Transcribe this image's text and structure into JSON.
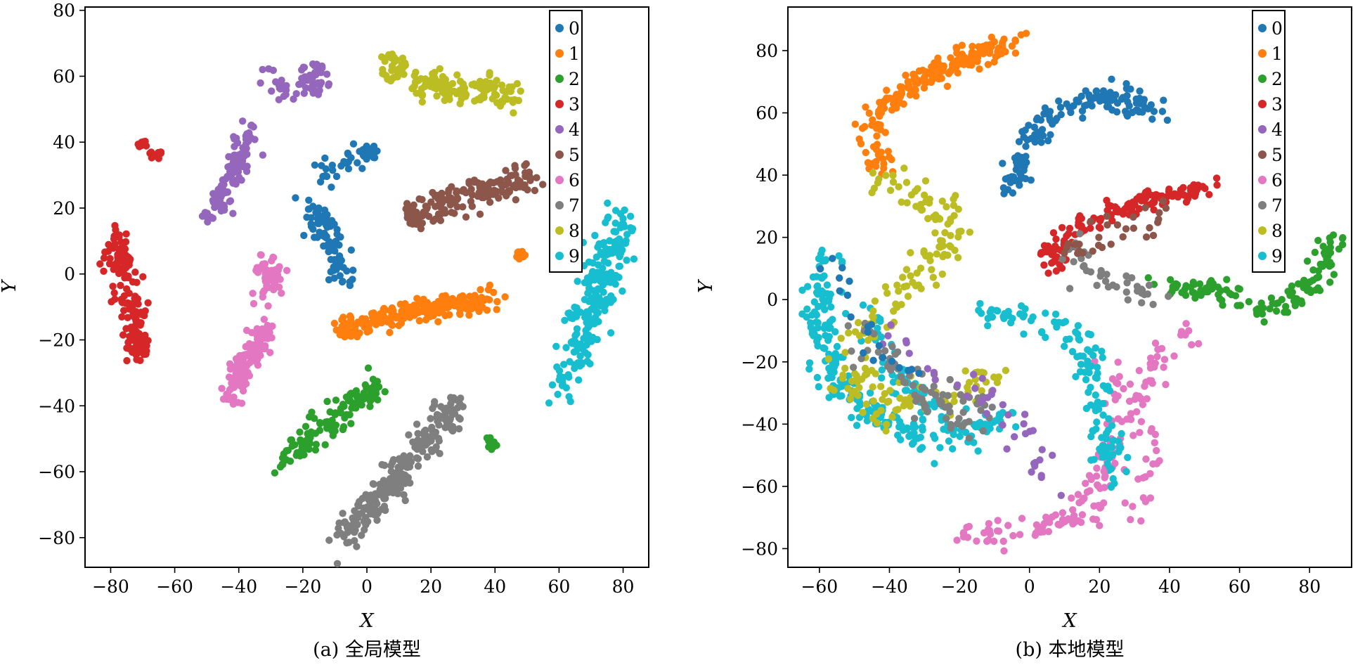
{
  "figure": {
    "palette": [
      "#1f77b4",
      "#ff7f0e",
      "#2ca02c",
      "#d62728",
      "#9467bd",
      "#8c564b",
      "#e377c2",
      "#7f7f7f",
      "#bcbd22",
      "#17becf"
    ]
  },
  "chart_data": [
    {
      "type": "scatter",
      "caption": "(a) 全局模型",
      "xlabel": "X",
      "ylabel": "Y",
      "xlim": [
        -88,
        88
      ],
      "ylim": [
        -89,
        81
      ],
      "xticks": [
        -80,
        -60,
        -40,
        -20,
        0,
        20,
        40,
        60,
        80
      ],
      "yticks": [
        -80,
        -60,
        -40,
        -20,
        0,
        20,
        40,
        60,
        80
      ],
      "legend": {
        "placement": "top-right",
        "labels": [
          "0",
          "1",
          "2",
          "3",
          "4",
          "5",
          "6",
          "7",
          "8",
          "9"
        ]
      },
      "clusters": [
        {
          "label": "0",
          "shape": "line",
          "from": [
            -17,
            22
          ],
          "to": [
            -6,
            -2
          ],
          "count": 90,
          "spread": 2.0
        },
        {
          "label": "0",
          "shape": "line",
          "from": [
            -16,
            30
          ],
          "to": [
            -4,
            36
          ],
          "count": 25,
          "spread": 2.0
        },
        {
          "label": "0",
          "shape": "blob",
          "center": [
            1,
            37
          ],
          "radius": 2.5,
          "count": 18
        },
        {
          "label": "1",
          "shape": "line",
          "from": [
            -7,
            -16
          ],
          "to": [
            39,
            -7
          ],
          "count": 200,
          "spread": 2.0
        },
        {
          "label": "1",
          "shape": "blob",
          "center": [
            48,
            6
          ],
          "radius": 1.5,
          "count": 12
        },
        {
          "label": "2",
          "shape": "line",
          "from": [
            -29,
            -59
          ],
          "to": [
            4,
            -33
          ],
          "count": 130,
          "spread": 2.2
        },
        {
          "label": "2",
          "shape": "blob",
          "center": [
            39,
            -51
          ],
          "radius": 2.3,
          "count": 15
        },
        {
          "label": "3",
          "shape": "line",
          "from": [
            -78,
            12
          ],
          "to": [
            -71,
            -27
          ],
          "count": 150,
          "spread": 2.0
        },
        {
          "label": "3",
          "shape": "blob",
          "center": [
            -66,
            36
          ],
          "radius": 2.0,
          "count": 12
        },
        {
          "label": "3",
          "shape": "blob",
          "center": [
            -70,
            39
          ],
          "radius": 1.5,
          "count": 8
        },
        {
          "label": "4",
          "shape": "line",
          "from": [
            -48,
            18
          ],
          "to": [
            -36,
            44
          ],
          "count": 110,
          "spread": 2.0
        },
        {
          "label": "4",
          "shape": "blob",
          "center": [
            -17,
            59
          ],
          "radius": 5.5,
          "count": 40
        },
        {
          "label": "4",
          "shape": "line",
          "from": [
            -32,
            64
          ],
          "to": [
            -22,
            52
          ],
          "count": 20,
          "spread": 2.0
        },
        {
          "label": "5",
          "shape": "line",
          "from": [
            13,
            18
          ],
          "to": [
            52,
            30
          ],
          "count": 150,
          "spread": 2.5
        },
        {
          "label": "5",
          "shape": "blob",
          "center": [
            15,
            17
          ],
          "radius": 2.5,
          "count": 12
        },
        {
          "label": "6",
          "shape": "line",
          "from": [
            -42,
            -37
          ],
          "to": [
            -32,
            -15
          ],
          "count": 120,
          "spread": 2.0
        },
        {
          "label": "6",
          "shape": "blob",
          "center": [
            -31,
            2
          ],
          "radius": 4.5,
          "count": 35
        },
        {
          "label": "6",
          "shape": "line",
          "from": [
            -35,
            -8
          ],
          "to": [
            -27,
            -2
          ],
          "count": 15,
          "spread": 1.5
        },
        {
          "label": "7",
          "shape": "line",
          "from": [
            -8,
            -81
          ],
          "to": [
            29,
            -39
          ],
          "count": 230,
          "spread": 2.5
        },
        {
          "label": "8",
          "shape": "blob",
          "center": [
            8,
            63
          ],
          "radius": 4.5,
          "count": 40
        },
        {
          "label": "8",
          "shape": "line",
          "from": [
            15,
            57
          ],
          "to": [
            47,
            55
          ],
          "count": 120,
          "spread": 2.2
        },
        {
          "label": "9",
          "shape": "line",
          "from": [
            61,
            -34
          ],
          "to": [
            80,
            16
          ],
          "count": 220,
          "spread": 3.2
        }
      ]
    },
    {
      "type": "scatter",
      "caption": "(b) 本地模型",
      "xlabel": "X",
      "ylabel": "Y",
      "xlim": [
        -69,
        92
      ],
      "ylim": [
        -86,
        94
      ],
      "xticks": [
        -60,
        -40,
        -20,
        0,
        20,
        40,
        60,
        80
      ],
      "yticks": [
        -80,
        -60,
        -40,
        -20,
        0,
        20,
        40,
        60,
        80
      ],
      "legend": {
        "placement": "top-right",
        "labels": [
          "0",
          "1",
          "2",
          "3",
          "4",
          "5",
          "6",
          "7",
          "8",
          "9"
        ]
      },
      "clusters": [
        {
          "label": "1",
          "shape": "curve",
          "points": [
            [
              -42,
              62
            ],
            [
              -30,
              72
            ],
            [
              -15,
              78
            ],
            [
              -3,
              84
            ]
          ],
          "count": 170,
          "spread": 2.0
        },
        {
          "label": "1",
          "shape": "curve",
          "points": [
            [
              -44,
              62
            ],
            [
              -44,
              54
            ],
            [
              -45,
              45
            ],
            [
              -40,
              42
            ]
          ],
          "count": 40,
          "spread": 1.8
        },
        {
          "label": "0",
          "shape": "curve",
          "points": [
            [
              -6,
              33
            ],
            [
              0,
              52
            ],
            [
              10,
              62
            ],
            [
              20,
              65
            ],
            [
              36,
              61
            ]
          ],
          "count": 150,
          "spread": 2.0
        },
        {
          "label": "3",
          "shape": "curve",
          "points": [
            [
              4,
              11
            ],
            [
              15,
              24
            ],
            [
              30,
              31
            ],
            [
              52,
              36
            ]
          ],
          "count": 140,
          "spread": 2.0
        },
        {
          "label": "2",
          "shape": "curve",
          "points": [
            [
              36,
              6
            ],
            [
              55,
              2
            ],
            [
              68,
              -4
            ],
            [
              80,
              4
            ],
            [
              88,
              20
            ]
          ],
          "count": 130,
          "spread": 1.8
        },
        {
          "label": "6",
          "shape": "curve",
          "points": [
            [
              -20,
              -75
            ],
            [
              0,
              -75
            ],
            [
              18,
              -70
            ],
            [
              26,
              -40
            ],
            [
              36,
              -20
            ],
            [
              47,
              -10
            ]
          ],
          "count": 120,
          "spread": 2.2
        },
        {
          "label": "6",
          "shape": "curve",
          "points": [
            [
              20,
              -20
            ],
            [
              30,
              -35
            ],
            [
              35,
              -50
            ],
            [
              30,
              -70
            ]
          ],
          "count": 40,
          "spread": 2.0
        },
        {
          "label": "9",
          "shape": "curve",
          "points": [
            [
              -57,
              12
            ],
            [
              -60,
              -10
            ],
            [
              -55,
              -30
            ],
            [
              -40,
              -40
            ],
            [
              -25,
              -45
            ],
            [
              -5,
              -38
            ]
          ],
          "count": 230,
          "spread": 2.5
        },
        {
          "label": "9",
          "shape": "curve",
          "points": [
            [
              -15,
              -3
            ],
            [
              10,
              -8
            ],
            [
              15,
              -15
            ],
            [
              20,
              -30
            ],
            [
              22,
              -50
            ],
            [
              24,
              -60
            ]
          ],
          "count": 130,
          "spread": 2.2
        },
        {
          "label": "9",
          "shape": "curve",
          "points": [
            [
              -45,
              -5
            ],
            [
              -40,
              -20
            ],
            [
              -30,
              -35
            ],
            [
              -20,
              -40
            ]
          ],
          "count": 60,
          "spread": 2.5
        },
        {
          "label": "8",
          "shape": "curve",
          "points": [
            [
              -45,
              40
            ],
            [
              -30,
              32
            ],
            [
              -20,
              22
            ],
            [
              -30,
              10
            ],
            [
              -40,
              0
            ],
            [
              -50,
              -15
            ]
          ],
          "count": 120,
          "spread": 2.8
        },
        {
          "label": "8",
          "shape": "curve",
          "points": [
            [
              -55,
              -20
            ],
            [
              -40,
              -35
            ],
            [
              -20,
              -30
            ],
            [
              -10,
              -25
            ]
          ],
          "count": 80,
          "spread": 3.0
        },
        {
          "label": "7",
          "shape": "curve",
          "points": [
            [
              -50,
              -10
            ],
            [
              -35,
              -25
            ],
            [
              -20,
              -38
            ],
            [
              -8,
              -35
            ]
          ],
          "count": 80,
          "spread": 3.0
        },
        {
          "label": "7",
          "shape": "curve",
          "points": [
            [
              8,
              18
            ],
            [
              18,
              8
            ],
            [
              30,
              4
            ],
            [
              36,
              -2
            ]
          ],
          "count": 40,
          "spread": 2.5
        },
        {
          "label": "5",
          "shape": "curve",
          "points": [
            [
              10,
              15
            ],
            [
              25,
              22
            ],
            [
              40,
              28
            ]
          ],
          "count": 30,
          "spread": 2.5
        },
        {
          "label": "4",
          "shape": "curve",
          "points": [
            [
              -40,
              -8
            ],
            [
              -20,
              -28
            ],
            [
              -5,
              -38
            ],
            [
              10,
              -65
            ]
          ],
          "count": 40,
          "spread": 3.0
        },
        {
          "label": "0",
          "shape": "curve",
          "points": [
            [
              -55,
              10
            ],
            [
              -45,
              -15
            ],
            [
              -30,
              -30
            ]
          ],
          "count": 20,
          "spread": 3.0
        },
        {
          "label": "6",
          "shape": "curve",
          "points": [
            [
              8,
              -72
            ],
            [
              14,
              -65
            ],
            [
              20,
              -55
            ]
          ],
          "count": 25,
          "spread": 2.0
        }
      ]
    }
  ]
}
